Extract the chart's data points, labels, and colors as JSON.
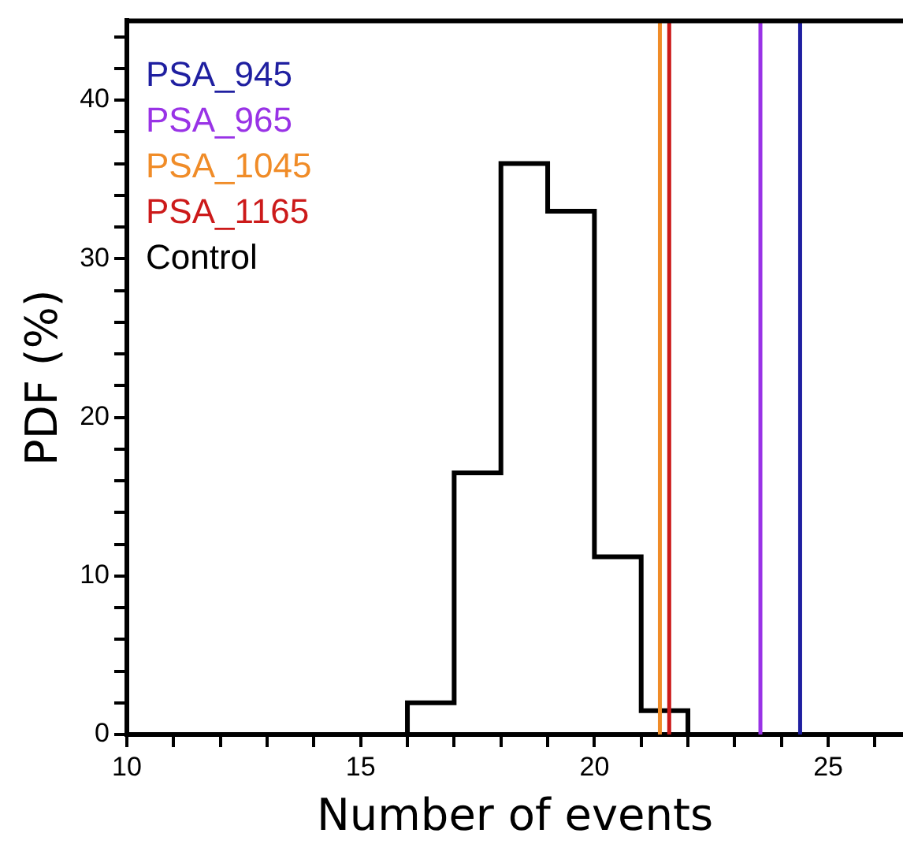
{
  "chart_data": {
    "type": "histogram",
    "xlabel": "Number of events",
    "ylabel": "PDF (%)",
    "bins": [
      16,
      17,
      18,
      19,
      20,
      21,
      22
    ],
    "series": [
      {
        "name": "Control",
        "color": "#000000",
        "values": [
          2,
          16.5,
          36,
          33,
          11.2,
          1.5
        ]
      }
    ],
    "ref_lines": [
      {
        "axis": "x",
        "value": 24.4,
        "label": "PSA_945",
        "color": "#1f1fa0"
      },
      {
        "axis": "x",
        "value": 23.55,
        "label": "PSA_965",
        "color": "#9933e6"
      },
      {
        "axis": "x",
        "value": 21.4,
        "label": "PSA_1045",
        "color": "#f08c28"
      },
      {
        "axis": "x",
        "value": 21.6,
        "label": "PSA_1165",
        "color": "#cc1a1a"
      }
    ],
    "xlim": [
      10,
      26.6
    ],
    "xticks": [
      10,
      {
        "value": 11,
        "label": null
      },
      {
        "value": 12,
        "label": null
      },
      {
        "value": 13,
        "label": null
      },
      {
        "value": 14,
        "label": null
      },
      15,
      {
        "value": 16,
        "label": null
      },
      {
        "value": 17,
        "label": null
      },
      {
        "value": 18,
        "label": null
      },
      {
        "value": 19,
        "label": null
      },
      20,
      {
        "value": 21,
        "label": null
      },
      {
        "value": 22,
        "label": null
      },
      {
        "value": 23,
        "label": null
      },
      {
        "value": 24,
        "label": null
      },
      25,
      {
        "value": 26,
        "label": null
      }
    ],
    "ylim": [
      0,
      45
    ],
    "yticks": [
      0,
      {
        "value": 2,
        "label": null
      },
      {
        "value": 4,
        "label": null
      },
      {
        "value": 6,
        "label": null
      },
      {
        "value": 8,
        "label": null
      },
      10,
      {
        "value": 12,
        "label": null
      },
      {
        "value": 14,
        "label": null
      },
      {
        "value": 16,
        "label": null
      },
      {
        "value": 18,
        "label": null
      },
      20,
      {
        "value": 22,
        "label": null
      },
      {
        "value": 24,
        "label": null
      },
      {
        "value": 26,
        "label": null
      },
      {
        "value": 28,
        "label": null
      },
      30,
      {
        "value": 32,
        "label": null
      },
      {
        "value": 34,
        "label": null
      },
      {
        "value": 36,
        "label": null
      },
      {
        "value": 38,
        "label": null
      },
      40,
      {
        "value": 42,
        "label": null
      },
      {
        "value": 44,
        "label": null
      }
    ],
    "grid": false,
    "legend": "top left"
  }
}
